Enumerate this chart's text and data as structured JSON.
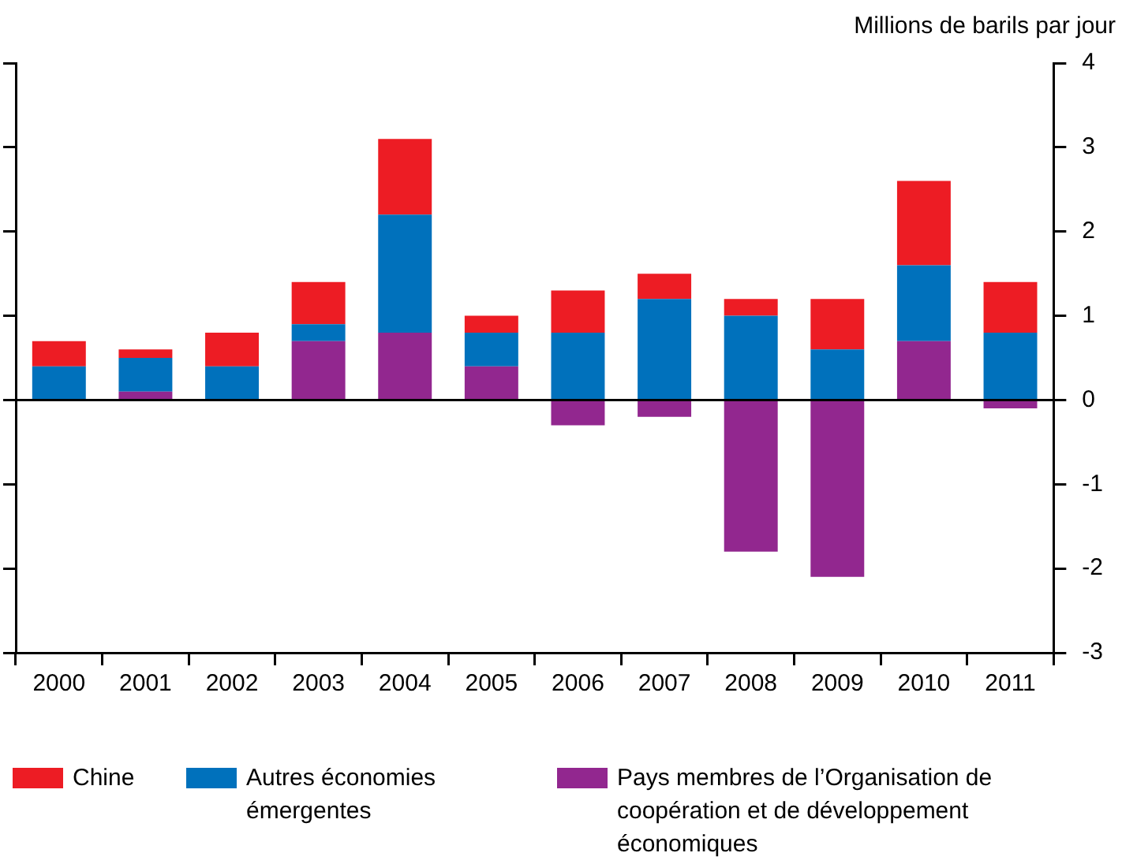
{
  "chart_data": {
    "type": "bar",
    "ylabel": "Millions de barils par jour",
    "categories": [
      "2000",
      "2001",
      "2002",
      "2003",
      "2004",
      "2005",
      "2006",
      "2007",
      "2008",
      "2009",
      "2010",
      "2011"
    ],
    "stacked": true,
    "ylim": [
      -3,
      4
    ],
    "yticks": [
      -3,
      -2,
      -1,
      0,
      1,
      2,
      3,
      4
    ],
    "legend": "bottom",
    "series": [
      {
        "name": "Pays membres de l’Organisation de coopération et de développement économiques",
        "color": "#92278f",
        "values": [
          0,
          0.1,
          0,
          0.7,
          0.8,
          0.4,
          -0.3,
          -0.2,
          -1.8,
          -2.1,
          0.7,
          -0.1
        ]
      },
      {
        "name": "Autres économies émergentes",
        "color": "#0071bc",
        "values": [
          0.4,
          0.4,
          0.4,
          0.2,
          1.4,
          0.4,
          0.8,
          1.2,
          1.0,
          0.6,
          0.9,
          0.8
        ]
      },
      {
        "name": "Chine",
        "color": "#ed1c24",
        "values": [
          0.3,
          0.1,
          0.4,
          0.5,
          0.9,
          0.2,
          0.5,
          0.3,
          0.2,
          0.6,
          1.0,
          0.6
        ]
      }
    ]
  }
}
